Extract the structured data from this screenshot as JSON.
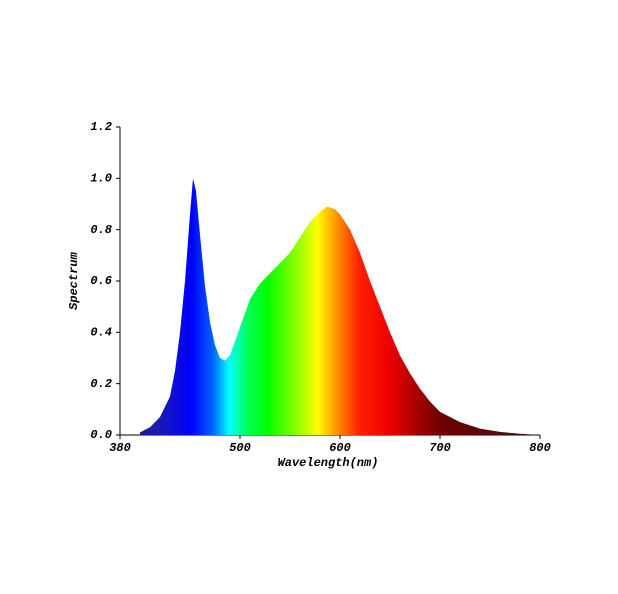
{
  "chart_data": {
    "type": "area",
    "x_label": "Wavelength(nm)",
    "y_label": "Spectrum",
    "x": [
      400,
      410,
      420,
      430,
      435,
      440,
      445,
      450,
      453,
      456,
      460,
      465,
      470,
      475,
      480,
      485,
      490,
      500,
      510,
      520,
      530,
      540,
      550,
      560,
      570,
      580,
      587,
      595,
      600,
      610,
      620,
      630,
      640,
      650,
      660,
      670,
      680,
      690,
      700,
      720,
      740,
      760,
      780,
      800
    ],
    "values": [
      0.01,
      0.03,
      0.07,
      0.15,
      0.25,
      0.4,
      0.6,
      0.86,
      1.0,
      0.95,
      0.78,
      0.58,
      0.44,
      0.35,
      0.3,
      0.29,
      0.31,
      0.42,
      0.53,
      0.59,
      0.63,
      0.67,
      0.71,
      0.77,
      0.83,
      0.87,
      0.89,
      0.88,
      0.86,
      0.8,
      0.71,
      0.6,
      0.5,
      0.4,
      0.31,
      0.24,
      0.18,
      0.13,
      0.09,
      0.05,
      0.025,
      0.012,
      0.005,
      0.0
    ],
    "xlim": [
      380,
      800
    ],
    "xticks": [
      380,
      500,
      600,
      700,
      800
    ],
    "ylim": [
      0,
      1.2
    ],
    "yticks": [
      {
        "value": 0,
        "label": "0.0"
      },
      0.2,
      0.4,
      0.6,
      0.8,
      {
        "value": 1,
        "label": "1.0"
      },
      1.2
    ]
  }
}
